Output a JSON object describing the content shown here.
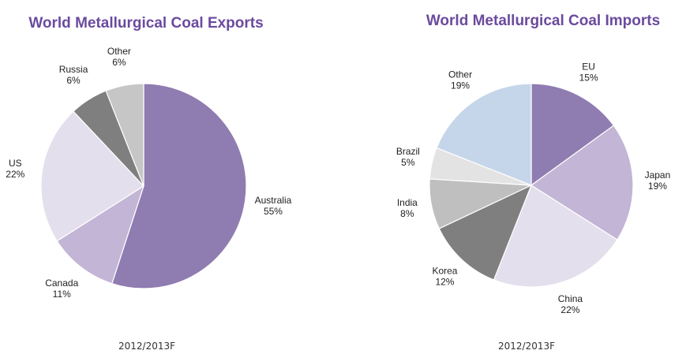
{
  "colors": {
    "title": "#6b4a9e",
    "slice_stroke": "#ffffff"
  },
  "chart_data": [
    {
      "type": "pie",
      "title": "World Metallurgical Coal Exports",
      "caption": "2012/2013F",
      "slices": [
        {
          "label": "Australia",
          "value": 55,
          "pct_label": "55%",
          "color": "#8f7cb0"
        },
        {
          "label": "Canada",
          "value": 11,
          "pct_label": "11%",
          "color": "#c3b5d5"
        },
        {
          "label": "US",
          "value": 22,
          "pct_label": "22%",
          "color": "#e4dfec"
        },
        {
          "label": "Russia",
          "value": 6,
          "pct_label": "6%",
          "color": "#7f7f7f"
        },
        {
          "label": "Other",
          "value": 6,
          "pct_label": "6%",
          "color": "#c6c6c6"
        }
      ]
    },
    {
      "type": "pie",
      "title": "World Metallurgical Coal Imports",
      "caption": "2012/2013F",
      "slices": [
        {
          "label": "EU",
          "value": 15,
          "pct_label": "15%",
          "color": "#8f7cb0"
        },
        {
          "label": "Japan",
          "value": 19,
          "pct_label": "19%",
          "color": "#c3b5d5"
        },
        {
          "label": "China",
          "value": 22,
          "pct_label": "22%",
          "color": "#e4dfec"
        },
        {
          "label": "Korea",
          "value": 12,
          "pct_label": "12%",
          "color": "#7f7f7f"
        },
        {
          "label": "India",
          "value": 8,
          "pct_label": "8%",
          "color": "#bfbfbf"
        },
        {
          "label": "Brazil",
          "value": 5,
          "pct_label": "5%",
          "color": "#e3e3e3"
        },
        {
          "label": "Other",
          "value": 19,
          "pct_label": "19%",
          "color": "#c5d6ea"
        }
      ]
    }
  ]
}
